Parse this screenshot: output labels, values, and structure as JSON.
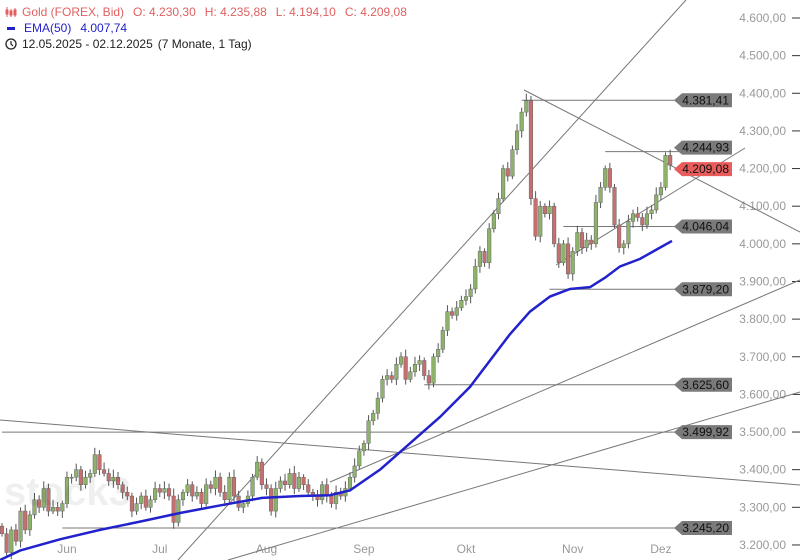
{
  "header": {
    "symbol": "Gold (FOREX, Bid)",
    "open": "O: 4.230,30",
    "high": "H: 4.235,88",
    "low": "L: 4.194,10",
    "close": "C: 4.209,08",
    "ema_label": "EMA(50)",
    "ema_value": "4.007,74",
    "range": "12.05.2025 - 02.12.2025",
    "duration": "(7 Monate, 1 Tag)"
  },
  "watermark": "stock3",
  "colors": {
    "up": "#8db26a",
    "down": "#c76f6f",
    "ema": "#2222cc",
    "current": "#e85c5c",
    "level": "#777777",
    "text_up": "#e06060"
  },
  "chart_data": {
    "type": "candlestick",
    "ylim": [
      3200,
      4650
    ],
    "y_ticks": [
      "4.600,00",
      "4.500,00",
      "4.400,00",
      "4.300,00",
      "4.200,00",
      "4.100,00",
      "4.000,00",
      "3.900,00",
      "3.800,00",
      "3.700,00",
      "3.600,00",
      "3.500,00",
      "3.400,00",
      "3.300,00",
      "3.200,00"
    ],
    "y_tick_values": [
      4600,
      4500,
      4400,
      4300,
      4200,
      4100,
      4000,
      3900,
      3800,
      3700,
      3600,
      3500,
      3400,
      3300,
      3200
    ],
    "x_labels": [
      {
        "label": "Jun",
        "index": 14
      },
      {
        "label": "Jul",
        "index": 34
      },
      {
        "label": "Aug",
        "index": 57
      },
      {
        "label": "Sep",
        "index": 78
      },
      {
        "label": "Okt",
        "index": 100
      },
      {
        "label": "Nov",
        "index": 123
      },
      {
        "label": "Dez",
        "index": 142
      }
    ],
    "close": [
      3230,
      3180,
      3240,
      3210,
      3290,
      3240,
      3280,
      3320,
      3300,
      3350,
      3290,
      3300,
      3290,
      3310,
      3380,
      3380,
      3400,
      3360,
      3380,
      3390,
      3440,
      3400,
      3390,
      3370,
      3380,
      3360,
      3340,
      3330,
      3290,
      3310,
      3330,
      3300,
      3320,
      3350,
      3340,
      3350,
      3330,
      3260,
      3320,
      3340,
      3360,
      3330,
      3340,
      3310,
      3360,
      3350,
      3380,
      3340,
      3320,
      3380,
      3330,
      3300,
      3310,
      3330,
      3380,
      3420,
      3360,
      3350,
      3290,
      3350,
      3370,
      3360,
      3390,
      3350,
      3380,
      3360,
      3340,
      3330,
      3320,
      3360,
      3330,
      3310,
      3340,
      3330,
      3350,
      3380,
      3410,
      3450,
      3470,
      3530,
      3550,
      3590,
      3640,
      3650,
      3640,
      3680,
      3700,
      3640,
      3660,
      3680,
      3690,
      3650,
      3630,
      3700,
      3720,
      3770,
      3820,
      3810,
      3830,
      3850,
      3860,
      3880,
      3940,
      3980,
      3950,
      4040,
      4080,
      4120,
      4200,
      4180,
      4250,
      4300,
      4350,
      4380,
      4120,
      4020,
      4100,
      4080,
      4100,
      4000,
      3950,
      4000,
      3920,
      3980,
      4030,
      3990,
      4010,
      4000,
      4110,
      4150,
      4200,
      4150,
      4050,
      3990,
      4000,
      4060,
      4080,
      4070,
      4050,
      4080,
      4090,
      4130,
      4150,
      4235,
      4209
    ],
    "ema50": [
      [
        0,
        3160
      ],
      [
        20,
        3185
      ],
      [
        60,
        3215
      ],
      [
        100,
        3240
      ],
      [
        140,
        3262
      ],
      [
        180,
        3285
      ],
      [
        220,
        3305
      ],
      [
        262,
        3325
      ],
      [
        300,
        3330
      ],
      [
        330,
        3332
      ],
      [
        350,
        3345
      ],
      [
        380,
        3400
      ],
      [
        410,
        3470
      ],
      [
        440,
        3540
      ],
      [
        470,
        3620
      ],
      [
        490,
        3690
      ],
      [
        510,
        3760
      ],
      [
        530,
        3820
      ],
      [
        550,
        3860
      ],
      [
        570,
        3880
      ],
      [
        590,
        3885
      ],
      [
        605,
        3910
      ],
      [
        620,
        3940
      ],
      [
        640,
        3960
      ],
      [
        660,
        3990
      ],
      [
        672,
        4007.74
      ]
    ],
    "levels": [
      {
        "value": 4381.41,
        "label": "4.381,41",
        "from_index": 112
      },
      {
        "value": 4244.93,
        "label": "4.244,93",
        "from_index": 130
      },
      {
        "value": 4209.08,
        "label": "4.209,08",
        "current": true
      },
      {
        "value": 4046.04,
        "label": "4.046,04",
        "from_index": 121
      },
      {
        "value": 3879.2,
        "label": "3.879,20",
        "from_index": 118
      },
      {
        "value": 3625.6,
        "label": "3.625,60",
        "from_index": 91
      },
      {
        "value": 3499.92,
        "label": "3.499,92",
        "from_index": 0
      },
      {
        "value": 3245.2,
        "label": "3.245,20",
        "from_index": 13
      }
    ]
  }
}
